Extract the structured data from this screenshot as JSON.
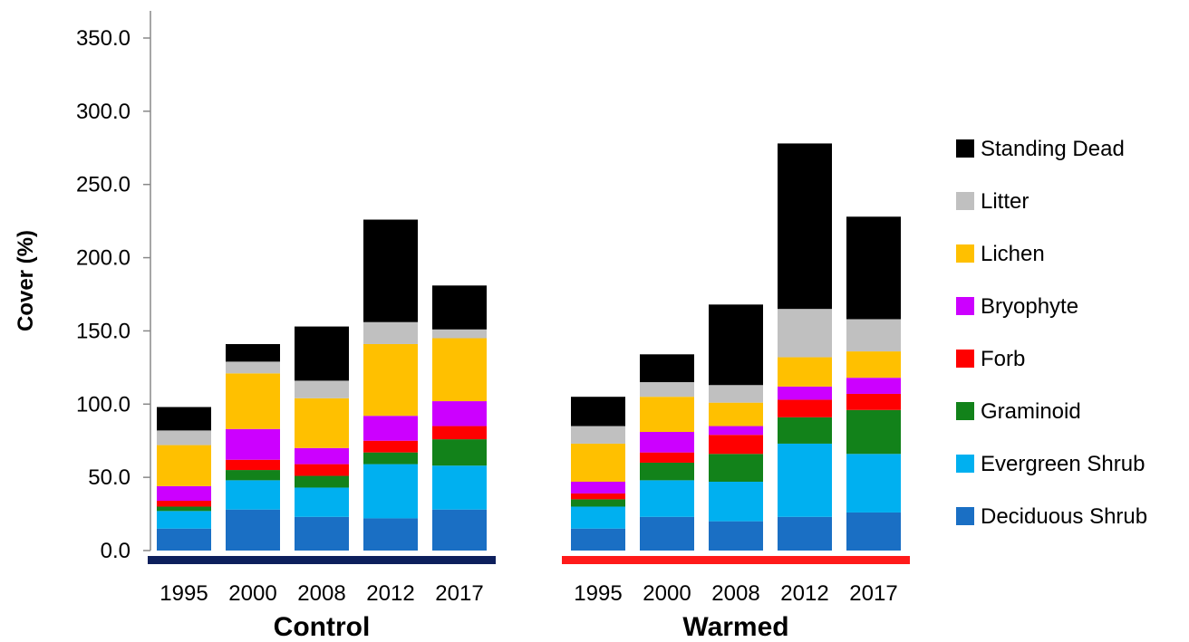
{
  "chart_data": {
    "type": "bar",
    "stacked": true,
    "ylabel": "Cover (%)",
    "ylim": [
      0,
      350
    ],
    "yticks": [
      "0.0",
      "50.0",
      "100.0",
      "150.0",
      "200.0",
      "250.0",
      "300.0",
      "350.0"
    ],
    "grid": false,
    "legend_position": "right",
    "categories": [
      "1995",
      "2000",
      "2008",
      "2012",
      "2017"
    ],
    "groups": [
      {
        "name": "Control",
        "bar_color": "#0d1f5c"
      },
      {
        "name": "Warmed",
        "bar_color": "#ff1a1a"
      }
    ],
    "series": [
      {
        "name": "Deciduous Shrub",
        "color": "#1a6fc4",
        "values": {
          "Control": [
            15,
            28,
            23,
            22,
            28
          ],
          "Warmed": [
            15,
            23,
            20,
            23,
            26
          ]
        }
      },
      {
        "name": "Evergreen Shrub",
        "color": "#00b0f0",
        "values": {
          "Control": [
            12,
            20,
            20,
            37,
            30
          ],
          "Warmed": [
            15,
            25,
            27,
            50,
            40
          ]
        }
      },
      {
        "name": "Graminoid",
        "color": "#12821a",
        "values": {
          "Control": [
            3,
            7,
            8,
            8,
            18
          ],
          "Warmed": [
            5,
            12,
            19,
            18,
            30
          ]
        }
      },
      {
        "name": "Forb",
        "color": "#ff0000",
        "values": {
          "Control": [
            4,
            7,
            8,
            8,
            9
          ],
          "Warmed": [
            4,
            7,
            13,
            12,
            11
          ]
        }
      },
      {
        "name": "Bryophyte",
        "color": "#cc00ff",
        "values": {
          "Control": [
            10,
            21,
            11,
            17,
            17
          ],
          "Warmed": [
            8,
            14,
            6,
            9,
            11
          ]
        }
      },
      {
        "name": "Lichen",
        "color": "#ffc000",
        "values": {
          "Control": [
            28,
            38,
            34,
            49,
            43
          ],
          "Warmed": [
            26,
            24,
            16,
            20,
            18
          ]
        }
      },
      {
        "name": "Litter",
        "color": "#c0c0c0",
        "values": {
          "Control": [
            10,
            8,
            12,
            15,
            6
          ],
          "Warmed": [
            12,
            10,
            12,
            33,
            22
          ]
        }
      },
      {
        "name": "Standing Dead",
        "color": "#000000",
        "values": {
          "Control": [
            16,
            12,
            37,
            70,
            30
          ],
          "Warmed": [
            20,
            19,
            55,
            113,
            70
          ]
        }
      }
    ]
  }
}
